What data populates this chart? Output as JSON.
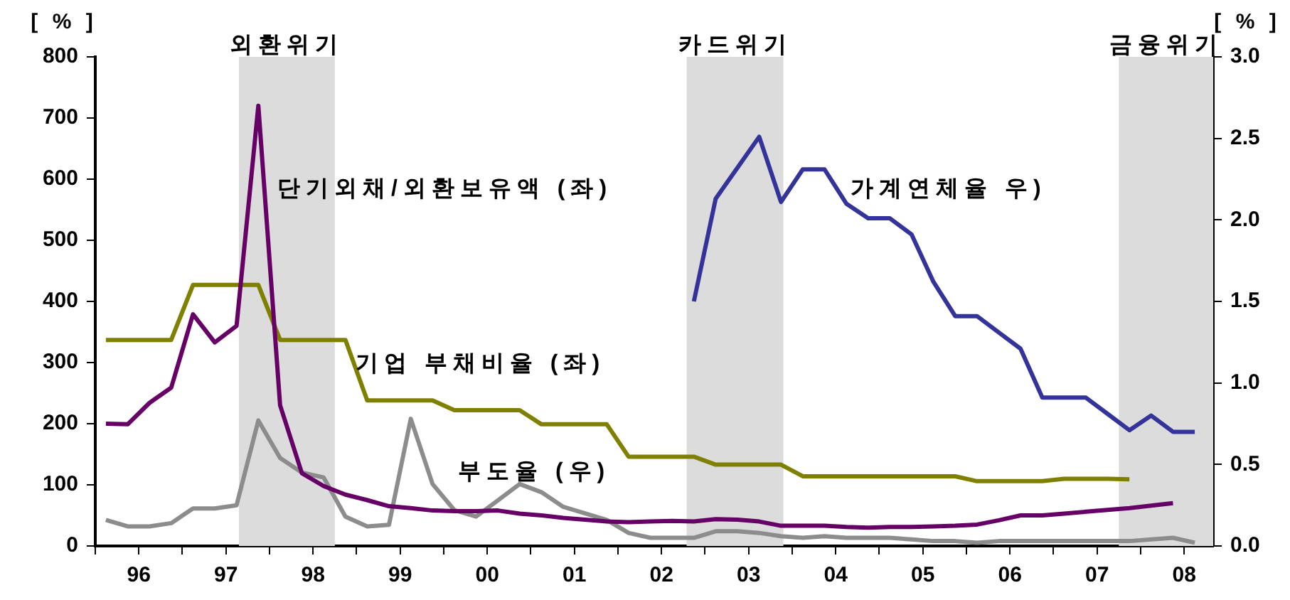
{
  "chart_data": {
    "type": "line",
    "ylabel": "[ % ]",
    "y2label": "[ % ]",
    "x": [
      "1996-02-15",
      "1996-05-15",
      "1996-08-15",
      "1996-11-15",
      "1997-02-15",
      "1997-05-15",
      "1997-08-15",
      "1997-11-15",
      "1998-02-15",
      "1998-05-15",
      "1998-08-15",
      "1998-11-15",
      "1999-02-15",
      "1999-05-15",
      "1999-08-15",
      "1999-11-15",
      "2000-02-15",
      "2000-05-15",
      "2000-08-15",
      "2000-11-15",
      "2001-02-15",
      "2001-05-15",
      "2001-08-15",
      "2001-11-15",
      "2002-02-15",
      "2002-05-15",
      "2002-08-15",
      "2002-11-15",
      "2003-02-15",
      "2003-05-15",
      "2003-08-15",
      "2003-11-15",
      "2004-02-15",
      "2004-05-15",
      "2004-08-15",
      "2004-11-15",
      "2005-02-15",
      "2005-05-15",
      "2005-08-15",
      "2005-11-15",
      "2006-02-15",
      "2006-05-15",
      "2006-08-15",
      "2006-11-15",
      "2007-02-15",
      "2007-05-15",
      "2007-08-15",
      "2007-11-15",
      "2008-02-15",
      "2008-05-15",
      "2008-08-15"
    ],
    "series": [
      {
        "name": "단기외채/외환보유액 (좌)",
        "color": "#660066",
        "axis": "y",
        "values": [
          200,
          199,
          234,
          259,
          379,
          333,
          360,
          720,
          230,
          119,
          98,
          84,
          75,
          65,
          62,
          58,
          57,
          57,
          58,
          53,
          50,
          46,
          43,
          40,
          39,
          40,
          41,
          40,
          44,
          43,
          40,
          33,
          33,
          33,
          31,
          30,
          31,
          31,
          32,
          33,
          35,
          42,
          50,
          50,
          53,
          56,
          59,
          62,
          66,
          70,
          null
        ]
      },
      {
        "name": "기업 부채비율 (좌)",
        "color": "#808000",
        "axis": "y",
        "values": [
          337,
          337,
          337,
          337,
          427,
          427,
          427,
          427,
          337,
          337,
          337,
          337,
          238,
          238,
          238,
          238,
          222,
          222,
          222,
          222,
          199,
          199,
          199,
          199,
          146,
          146,
          146,
          146,
          133,
          133,
          133,
          133,
          114,
          114,
          114,
          114,
          114,
          114,
          114,
          114,
          106,
          106,
          106,
          106,
          110,
          110,
          110,
          109,
          null,
          null,
          null
        ]
      },
      {
        "name": "부도율 (우)",
        "color": "#8c8c8c",
        "axis": "y2",
        "values": [
          0.16,
          0.12,
          0.12,
          0.14,
          0.23,
          0.23,
          0.25,
          0.77,
          0.54,
          0.45,
          0.42,
          0.18,
          0.12,
          0.13,
          0.78,
          0.38,
          0.22,
          0.18,
          0.28,
          0.38,
          0.33,
          0.24,
          0.2,
          0.16,
          0.08,
          0.05,
          0.05,
          0.05,
          0.09,
          0.09,
          0.08,
          0.06,
          0.05,
          0.06,
          0.05,
          0.05,
          0.05,
          0.04,
          0.03,
          0.03,
          0.02,
          0.03,
          0.03,
          0.03,
          0.03,
          0.03,
          0.03,
          0.03,
          0.04,
          0.05,
          0.02
        ]
      },
      {
        "name": "가계연체율 우)",
        "color": "#333399",
        "axis": "y2",
        "values": [
          null,
          null,
          null,
          null,
          null,
          null,
          null,
          null,
          null,
          null,
          null,
          null,
          null,
          null,
          null,
          null,
          null,
          null,
          null,
          null,
          null,
          null,
          null,
          null,
          null,
          null,
          null,
          1.5,
          2.13,
          2.32,
          2.51,
          2.11,
          2.31,
          2.31,
          2.1,
          2.01,
          2.01,
          1.91,
          1.62,
          1.41,
          1.41,
          1.31,
          1.21,
          0.91,
          0.91,
          0.91,
          0.81,
          0.71,
          0.8,
          0.7,
          0.7
        ]
      }
    ],
    "xlim": [
      "1996",
      "2008-11-01"
    ],
    "xticks": [
      {
        "value": "1996",
        "label": null
      },
      {
        "value": "1996-07-01",
        "label": "96"
      },
      {
        "value": "1997",
        "label": null
      },
      {
        "value": "1997-07-01",
        "label": "97"
      },
      {
        "value": "1998",
        "label": null
      },
      {
        "value": "1998-07-01",
        "label": "98"
      },
      {
        "value": "1999",
        "label": null
      },
      {
        "value": "1999-07-01",
        "label": "99"
      },
      {
        "value": "2000",
        "label": null
      },
      {
        "value": "2000-07-01",
        "label": "00"
      },
      {
        "value": "2001",
        "label": null
      },
      {
        "value": "2001-07-01",
        "label": "01"
      },
      {
        "value": "2002",
        "label": null
      },
      {
        "value": "2002-07-01",
        "label": "02"
      },
      {
        "value": "2003",
        "label": null
      },
      {
        "value": "2003-07-01",
        "label": "03"
      },
      {
        "value": "2004",
        "label": null
      },
      {
        "value": "2004-07-01",
        "label": "04"
      },
      {
        "value": "2005",
        "label": null
      },
      {
        "value": "2005-07-01",
        "label": "05"
      },
      {
        "value": "2006",
        "label": null
      },
      {
        "value": "2006-07-01",
        "label": "06"
      },
      {
        "value": "2007",
        "label": null
      },
      {
        "value": "2007-07-01",
        "label": "07"
      },
      {
        "value": "2008",
        "label": null
      },
      {
        "value": "2008-07-01",
        "label": "08"
      }
    ],
    "ylim": [
      0,
      800
    ],
    "yticks": [
      0,
      100,
      200,
      300,
      400,
      500,
      600,
      700,
      800
    ],
    "y2lim": [
      0,
      3
    ],
    "y2ticks": [
      {
        "value": 0,
        "label": "0.0"
      },
      {
        "value": 0.5,
        "label": "0.5"
      },
      {
        "value": 1,
        "label": "1.0"
      },
      {
        "value": 1.5,
        "label": "1.5"
      },
      {
        "value": 2,
        "label": "2.0"
      },
      {
        "value": 2.5,
        "label": "2.5"
      },
      {
        "value": 3,
        "label": "3.0"
      }
    ],
    "bands": [
      {
        "axis": "x",
        "from": "1997-08-25",
        "to": "1998-10-01",
        "label": "외환위기",
        "color": "#dcdcdc"
      },
      {
        "axis": "x",
        "from": "2002-10-15",
        "to": "2003-11-25",
        "label": "카드위기",
        "color": "#dcdcdc"
      },
      {
        "axis": "x",
        "from": "2007-10-01",
        "to": "2008-11-01",
        "label": "금융위기",
        "color": "#dcdcdc"
      }
    ]
  }
}
